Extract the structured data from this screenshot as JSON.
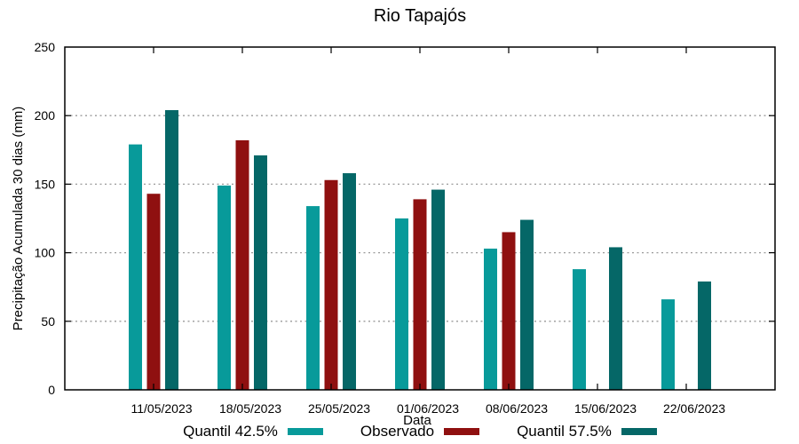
{
  "chart_data": {
    "type": "bar",
    "title": "Rio Tapajós",
    "xlabel": "Data",
    "ylabel": "Precipitação Acumulada 30 dias (mm)",
    "ylim": [
      0,
      250
    ],
    "ytick_step": 50,
    "grid": true,
    "legend_position": "bottom",
    "categories": [
      "11/05/2023",
      "18/05/2023",
      "25/05/2023",
      "01/06/2023",
      "08/06/2023",
      "15/06/2023",
      "22/06/2023"
    ],
    "series": [
      {
        "name": "Quantil 42.5%",
        "color": "#089a9a",
        "values": [
          179,
          149,
          134,
          125,
          103,
          88,
          66
        ]
      },
      {
        "name": "Observado",
        "color": "#8f1010",
        "values": [
          143,
          182,
          153,
          139,
          115,
          null,
          null
        ]
      },
      {
        "name": "Quantil 57.5%",
        "color": "#056767",
        "values": [
          204,
          171,
          158,
          146,
          124,
          104,
          79
        ]
      }
    ],
    "colors": {
      "axis": "#000000",
      "grid": "#9a9a9a"
    }
  }
}
